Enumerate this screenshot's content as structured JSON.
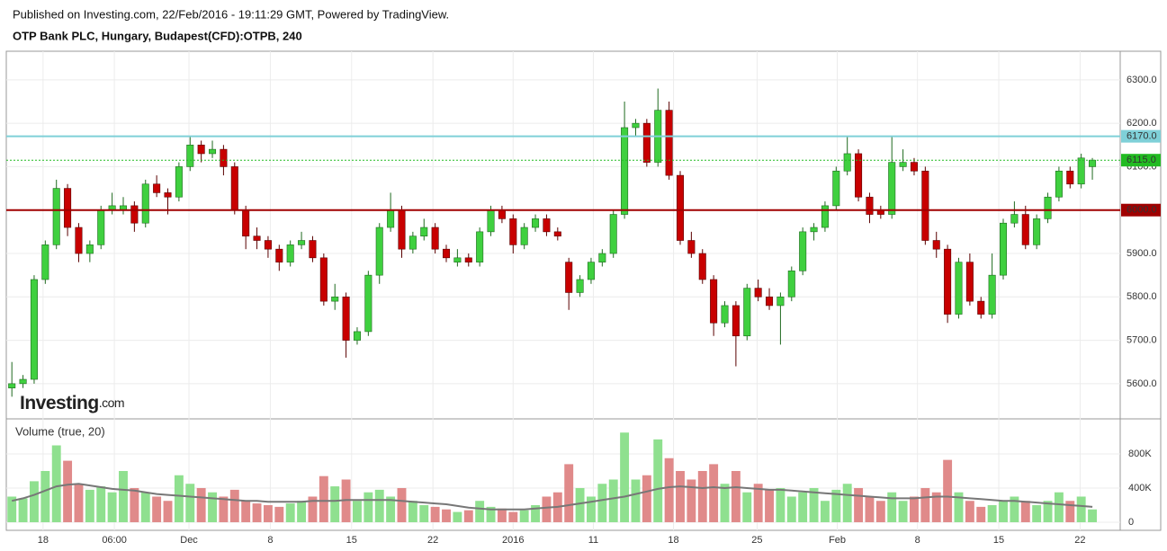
{
  "header": {
    "published": "Published on Investing.com, 22/Feb/2016 - 19:11:29 GMT, Powered by TradingView.",
    "symbol": "OTP Bank PLC, Hungary, Budapest(CFD):OTPB, 240"
  },
  "logo": {
    "brand": "Investing",
    "suffix": ".com"
  },
  "chart_data": [
    {
      "type": "candlestick",
      "up_color": "#3fd03f",
      "down_color": "#c80000",
      "grid": true,
      "ylim": [
        5521,
        6366
      ],
      "yticks": [
        {
          "value": 5600,
          "label": "5600.0"
        },
        {
          "value": 5700,
          "label": "5700.0"
        },
        {
          "value": 5800,
          "label": "5800.0"
        },
        {
          "value": 5900,
          "label": "5900.0"
        },
        {
          "value": 6000,
          "label": "6000.0"
        },
        {
          "value": 6100,
          "label": "6100.0"
        },
        {
          "value": 6200,
          "label": "6200.0"
        },
        {
          "value": 6300,
          "label": "6300.0"
        }
      ],
      "xlim": [
        0,
        100
      ],
      "xticks": [
        {
          "value": 3.3,
          "label": "18"
        },
        {
          "value": 9.7,
          "label": "06:00"
        },
        {
          "value": 16.4,
          "label": "Dec"
        },
        {
          "value": 23.7,
          "label": "8"
        },
        {
          "value": 31.0,
          "label": "15"
        },
        {
          "value": 38.3,
          "label": "22"
        },
        {
          "value": 45.5,
          "label": "2016"
        },
        {
          "value": 52.7,
          "label": "11"
        },
        {
          "value": 59.9,
          "label": "18"
        },
        {
          "value": 67.4,
          "label": "25"
        },
        {
          "value": 74.6,
          "label": "Feb"
        },
        {
          "value": 81.8,
          "label": "8"
        },
        {
          "value": 89.1,
          "label": "15"
        },
        {
          "value": 96.4,
          "label": "22"
        }
      ],
      "levels": [
        {
          "value": 6170,
          "label": "6170.0",
          "color": "#7fd0d8"
        },
        {
          "value": 6115,
          "label": "6115.0",
          "color": "#22bb22"
        },
        {
          "value": 6000,
          "label": "6000.0",
          "color": "#a00000"
        }
      ],
      "ohlc": [
        [
          5590,
          5650,
          5570,
          5600
        ],
        [
          5600,
          5620,
          5590,
          5610
        ],
        [
          5610,
          5850,
          5600,
          5840
        ],
        [
          5840,
          5930,
          5830,
          5920
        ],
        [
          5920,
          6070,
          5910,
          6050
        ],
        [
          6050,
          6060,
          5940,
          5960
        ],
        [
          5960,
          5970,
          5880,
          5900
        ],
        [
          5900,
          5930,
          5880,
          5920
        ],
        [
          5920,
          6010,
          5910,
          6000
        ],
        [
          6000,
          6040,
          5990,
          6010
        ],
        [
          6000,
          6030,
          5990,
          6010
        ],
        [
          6010,
          6020,
          5950,
          5970
        ],
        [
          5970,
          6070,
          5960,
          6060
        ],
        [
          6060,
          6080,
          6030,
          6040
        ],
        [
          6040,
          6050,
          5990,
          6030
        ],
        [
          6030,
          6110,
          6020,
          6100
        ],
        [
          6100,
          6170,
          6090,
          6150
        ],
        [
          6150,
          6160,
          6110,
          6130
        ],
        [
          6130,
          6160,
          6120,
          6140
        ],
        [
          6140,
          6150,
          6080,
          6100
        ],
        [
          6100,
          6110,
          5990,
          6000
        ],
        [
          6000,
          6010,
          5910,
          5940
        ],
        [
          5940,
          5960,
          5910,
          5930
        ],
        [
          5930,
          5940,
          5890,
          5910
        ],
        [
          5910,
          5920,
          5860,
          5880
        ],
        [
          5880,
          5930,
          5870,
          5920
        ],
        [
          5920,
          5950,
          5910,
          5930
        ],
        [
          5930,
          5940,
          5880,
          5890
        ],
        [
          5890,
          5900,
          5780,
          5790
        ],
        [
          5790,
          5830,
          5770,
          5800
        ],
        [
          5800,
          5810,
          5660,
          5700
        ],
        [
          5700,
          5730,
          5690,
          5720
        ],
        [
          5720,
          5860,
          5710,
          5850
        ],
        [
          5850,
          5970,
          5830,
          5960
        ],
        [
          5960,
          6040,
          5950,
          6000
        ],
        [
          6000,
          6010,
          5890,
          5910
        ],
        [
          5910,
          5950,
          5900,
          5940
        ],
        [
          5940,
          5980,
          5930,
          5960
        ],
        [
          5960,
          5970,
          5900,
          5910
        ],
        [
          5910,
          5920,
          5880,
          5890
        ],
        [
          5880,
          5910,
          5870,
          5890
        ],
        [
          5890,
          5900,
          5870,
          5880
        ],
        [
          5880,
          5960,
          5870,
          5950
        ],
        [
          5950,
          6010,
          5940,
          6000
        ],
        [
          6000,
          6010,
          5970,
          5980
        ],
        [
          5980,
          5990,
          5900,
          5920
        ],
        [
          5920,
          5970,
          5910,
          5960
        ],
        [
          5960,
          5990,
          5950,
          5980
        ],
        [
          5980,
          5990,
          5940,
          5950
        ],
        [
          5950,
          5960,
          5930,
          5940
        ],
        [
          5880,
          5890,
          5770,
          5810
        ],
        [
          5810,
          5850,
          5800,
          5840
        ],
        [
          5840,
          5890,
          5830,
          5880
        ],
        [
          5880,
          5910,
          5870,
          5900
        ],
        [
          5900,
          6000,
          5890,
          5990
        ],
        [
          5990,
          6250,
          5980,
          6190
        ],
        [
          6190,
          6210,
          6170,
          6200
        ],
        [
          6200,
          6210,
          6100,
          6110
        ],
        [
          6110,
          6280,
          6100,
          6230
        ],
        [
          6230,
          6250,
          6070,
          6080
        ],
        [
          6080,
          6090,
          5920,
          5930
        ],
        [
          5930,
          5950,
          5890,
          5900
        ],
        [
          5900,
          5910,
          5830,
          5840
        ],
        [
          5840,
          5850,
          5710,
          5740
        ],
        [
          5740,
          5790,
          5730,
          5780
        ],
        [
          5780,
          5790,
          5640,
          5710
        ],
        [
          5710,
          5830,
          5700,
          5820
        ],
        [
          5820,
          5840,
          5790,
          5800
        ],
        [
          5800,
          5820,
          5770,
          5780
        ],
        [
          5780,
          5810,
          5690,
          5800
        ],
        [
          5800,
          5870,
          5790,
          5860
        ],
        [
          5860,
          5960,
          5850,
          5950
        ],
        [
          5950,
          5970,
          5930,
          5960
        ],
        [
          5960,
          6020,
          5950,
          6010
        ],
        [
          6010,
          6100,
          6000,
          6090
        ],
        [
          6090,
          6170,
          6080,
          6130
        ],
        [
          6130,
          6140,
          6020,
          6030
        ],
        [
          6030,
          6040,
          5970,
          5990
        ],
        [
          6000,
          6010,
          5980,
          5990
        ],
        [
          5990,
          6170,
          5980,
          6110
        ],
        [
          6100,
          6140,
          6090,
          6110
        ],
        [
          6110,
          6120,
          6080,
          6090
        ],
        [
          6090,
          6100,
          5920,
          5930
        ],
        [
          5930,
          5950,
          5890,
          5910
        ],
        [
          5910,
          5920,
          5740,
          5760
        ],
        [
          5760,
          5890,
          5750,
          5880
        ],
        [
          5880,
          5900,
          5780,
          5790
        ],
        [
          5790,
          5800,
          5750,
          5760
        ],
        [
          5760,
          5900,
          5750,
          5850
        ],
        [
          5850,
          5980,
          5840,
          5970
        ],
        [
          5970,
          6020,
          5960,
          5990
        ],
        [
          5990,
          6010,
          5910,
          5920
        ],
        [
          5920,
          5990,
          5910,
          5980
        ],
        [
          5980,
          6040,
          5970,
          6030
        ],
        [
          6030,
          6100,
          6020,
          6090
        ],
        [
          6090,
          6100,
          6050,
          6060
        ],
        [
          6060,
          6130,
          6050,
          6120
        ],
        [
          6100,
          6120,
          6070,
          6115
        ]
      ]
    },
    {
      "type": "volume",
      "title": "Volume (true, 20)",
      "up_color": "#8fe08f",
      "down_color": "#e08a8a",
      "ma_color": "#777777",
      "ylim": [
        -95000,
        1200000
      ],
      "xlim": [
        0,
        100
      ],
      "yticks": [
        0,
        {
          "value": 400000,
          "label": "400K"
        },
        {
          "value": 800000,
          "label": "800K"
        }
      ],
      "values": [
        300000,
        280000,
        480000,
        600000,
        900000,
        720000,
        450000,
        380000,
        420000,
        350000,
        600000,
        400000,
        350000,
        300000,
        250000,
        550000,
        450000,
        400000,
        350000,
        300000,
        380000,
        250000,
        220000,
        200000,
        180000,
        220000,
        250000,
        300000,
        540000,
        420000,
        500000,
        250000,
        350000,
        380000,
        300000,
        400000,
        250000,
        200000,
        180000,
        150000,
        120000,
        140000,
        250000,
        180000,
        160000,
        120000,
        140000,
        200000,
        300000,
        350000,
        680000,
        400000,
        300000,
        450000,
        500000,
        1050000,
        500000,
        550000,
        970000,
        750000,
        600000,
        500000,
        600000,
        680000,
        450000,
        600000,
        350000,
        450000,
        380000,
        400000,
        300000,
        350000,
        400000,
        250000,
        380000,
        450000,
        400000,
        300000,
        250000,
        350000,
        250000,
        300000,
        400000,
        350000,
        730000,
        350000,
        250000,
        180000,
        200000,
        250000,
        300000,
        250000,
        200000,
        250000,
        350000,
        250000,
        300000,
        150000
      ],
      "ma": [
        250000,
        280000,
        320000,
        370000,
        420000,
        440000,
        450000,
        430000,
        410000,
        390000,
        380000,
        370000,
        350000,
        330000,
        320000,
        310000,
        300000,
        290000,
        280000,
        270000,
        260000,
        250000,
        250000,
        240000,
        240000,
        240000,
        240000,
        250000,
        250000,
        250000,
        260000,
        260000,
        260000,
        260000,
        260000,
        250000,
        240000,
        230000,
        220000,
        210000,
        190000,
        170000,
        160000,
        150000,
        150000,
        150000,
        150000,
        160000,
        170000,
        180000,
        200000,
        220000,
        240000,
        260000,
        280000,
        300000,
        330000,
        360000,
        390000,
        410000,
        420000,
        410000,
        400000,
        410000,
        400000,
        410000,
        400000,
        390000,
        380000,
        380000,
        370000,
        360000,
        350000,
        340000,
        330000,
        320000,
        310000,
        300000,
        290000,
        280000,
        280000,
        280000,
        290000,
        300000,
        300000,
        290000,
        280000,
        270000,
        260000,
        250000,
        250000,
        240000,
        230000,
        220000,
        210000,
        200000,
        190000,
        180000
      ]
    }
  ]
}
